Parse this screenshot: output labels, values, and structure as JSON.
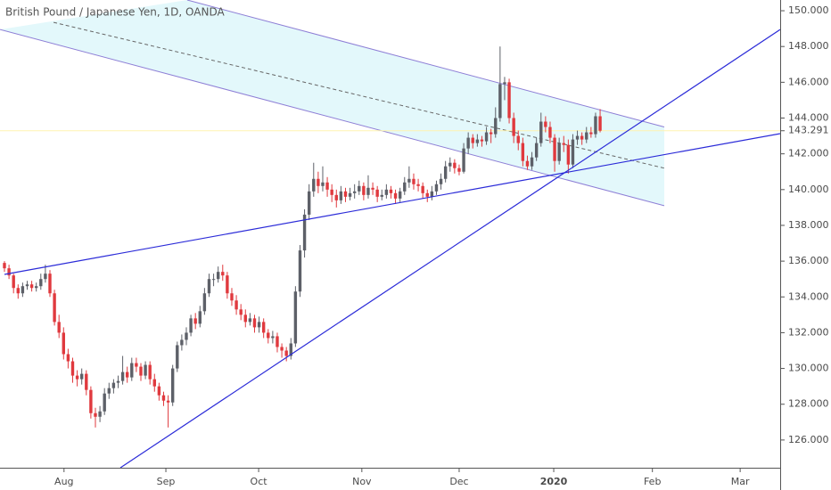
{
  "chart_data": {
    "type": "candlestick",
    "title": "British Pound / Japanese Yen, 1D, OANDA",
    "up_color": "#5d6068",
    "down_color": "#e0393e",
    "xlim": [
      -0.98,
      170.6
    ],
    "xticks": [
      {
        "value": 13.1,
        "label": "Aug"
      },
      {
        "value": 35.5,
        "label": "Sep"
      },
      {
        "value": 55.9,
        "label": "Oct"
      },
      {
        "value": 78.6,
        "label": "Nov"
      },
      {
        "value": 100,
        "label": "Dec"
      },
      {
        "value": 120.8,
        "label": "2020"
      },
      {
        "value": 142.5,
        "label": "Feb"
      },
      {
        "value": 161.8,
        "label": "Mar"
      }
    ],
    "ylim": [
      124.45,
      150.6
    ],
    "yticks": [
      {
        "value": 126,
        "label": "126.000"
      },
      {
        "value": 128,
        "label": "128.000"
      },
      {
        "value": 130,
        "label": "130.000"
      },
      {
        "value": 132,
        "label": "132.000"
      },
      {
        "value": 134,
        "label": "134.000"
      },
      {
        "value": 136,
        "label": "136.000"
      },
      {
        "value": 138,
        "label": "138.000"
      },
      {
        "value": 140,
        "label": "140.000"
      },
      {
        "value": 142,
        "label": "142.000"
      },
      {
        "value": 144,
        "label": "144.000"
      },
      {
        "value": 146,
        "label": "146.000"
      },
      {
        "value": 148,
        "label": "148.000"
      },
      {
        "value": 150,
        "label": "150.000"
      }
    ],
    "last_price": {
      "value": 143.291,
      "label": "143.291",
      "color": "#fff3b0"
    },
    "channel": {
      "color": "#8e7fd6",
      "fill": "#e3f8fb",
      "upper": [
        [
          40.2,
          150.6
        ],
        [
          145.1,
          143.5
        ]
      ],
      "middle": [
        [
          10.8,
          149.35
        ],
        [
          145.1,
          141.2
        ]
      ],
      "lower": [
        [
          -0.98,
          148.95
        ],
        [
          145.1,
          139.1
        ]
      ]
    },
    "trendlines": [
      {
        "color": "#2b2bd8",
        "points": [
          [
            0,
            135.26
          ],
          [
            170.6,
            143.13
          ]
        ]
      },
      {
        "color": "#2b2bd8",
        "points": [
          [
            25.5,
            124.45
          ],
          [
            170.6,
            148.95
          ]
        ]
      }
    ],
    "candles": [
      [
        135.9,
        136.0,
        135.4,
        135.6
      ],
      [
        135.6,
        135.8,
        135.0,
        135.2
      ],
      [
        135.2,
        135.3,
        134.2,
        134.5
      ],
      [
        134.5,
        134.7,
        133.9,
        134.2
      ],
      [
        134.2,
        134.8,
        134.0,
        134.6
      ],
      [
        134.6,
        134.9,
        134.4,
        134.7
      ],
      [
        134.7,
        134.9,
        134.3,
        134.5
      ],
      [
        134.5,
        134.8,
        134.3,
        134.6
      ],
      [
        134.6,
        135.3,
        134.4,
        135.0
      ],
      [
        135.0,
        135.8,
        134.8,
        135.3
      ],
      [
        135.3,
        135.5,
        134.0,
        134.2
      ],
      [
        134.2,
        134.4,
        132.4,
        132.6
      ],
      [
        132.6,
        133.0,
        131.7,
        132.0
      ],
      [
        132.0,
        132.3,
        130.5,
        130.8
      ],
      [
        130.8,
        131.1,
        130.0,
        130.4
      ],
      [
        130.4,
        130.6,
        129.2,
        129.6
      ],
      [
        129.6,
        129.9,
        129.0,
        129.4
      ],
      [
        129.4,
        130.0,
        129.1,
        129.7
      ],
      [
        129.7,
        129.9,
        128.5,
        128.8
      ],
      [
        128.8,
        129.0,
        127.2,
        127.5
      ],
      [
        127.5,
        127.8,
        126.7,
        127.3
      ],
      [
        127.3,
        127.9,
        127.0,
        127.6
      ],
      [
        127.6,
        128.9,
        127.4,
        128.6
      ],
      [
        128.6,
        129.2,
        128.3,
        128.9
      ],
      [
        128.9,
        129.4,
        128.6,
        129.2
      ],
      [
        129.2,
        129.6,
        128.9,
        129.3
      ],
      [
        129.3,
        130.7,
        129.1,
        129.8
      ],
      [
        129.8,
        130.1,
        129.2,
        129.5
      ],
      [
        129.5,
        130.6,
        129.3,
        130.3
      ],
      [
        130.3,
        130.6,
        129.8,
        130.1
      ],
      [
        130.1,
        130.3,
        129.3,
        129.6
      ],
      [
        129.6,
        130.4,
        129.4,
        130.2
      ],
      [
        130.2,
        130.4,
        129.1,
        129.4
      ],
      [
        129.4,
        129.7,
        128.7,
        129.0
      ],
      [
        129.0,
        129.2,
        128.2,
        128.5
      ],
      [
        128.5,
        128.7,
        127.9,
        128.2
      ],
      [
        128.2,
        128.5,
        126.7,
        128.1
      ],
      [
        128.1,
        130.2,
        127.9,
        130.0
      ],
      [
        130.0,
        131.5,
        129.8,
        131.3
      ],
      [
        131.3,
        131.9,
        131.0,
        131.6
      ],
      [
        131.6,
        132.3,
        131.3,
        132.0
      ],
      [
        132.0,
        133.0,
        131.8,
        132.8
      ],
      [
        132.8,
        133.1,
        132.2,
        132.5
      ],
      [
        132.5,
        133.5,
        132.3,
        133.2
      ],
      [
        133.2,
        134.5,
        133.0,
        134.2
      ],
      [
        134.2,
        135.3,
        134.0,
        135.0
      ],
      [
        135.0,
        135.3,
        134.6,
        135.0
      ],
      [
        135.0,
        135.7,
        134.8,
        135.4
      ],
      [
        135.4,
        135.8,
        134.9,
        135.2
      ],
      [
        135.2,
        135.4,
        133.9,
        134.2
      ],
      [
        134.2,
        134.5,
        133.5,
        133.8
      ],
      [
        133.8,
        134.1,
        133.0,
        133.3
      ],
      [
        133.3,
        133.6,
        132.7,
        133.0
      ],
      [
        133.0,
        133.3,
        132.3,
        132.6
      ],
      [
        132.6,
        133.1,
        132.4,
        132.8
      ],
      [
        132.8,
        133.0,
        132.0,
        132.3
      ],
      [
        132.3,
        132.9,
        132.0,
        132.6
      ],
      [
        132.6,
        132.8,
        131.7,
        132.0
      ],
      [
        132.0,
        132.2,
        131.4,
        131.7
      ],
      [
        131.7,
        132.1,
        131.4,
        131.8
      ],
      [
        131.8,
        132.0,
        130.9,
        131.2
      ],
      [
        131.2,
        131.4,
        130.6,
        131.0
      ],
      [
        131.0,
        131.2,
        130.4,
        130.7
      ],
      [
        130.7,
        131.7,
        130.5,
        131.4
      ],
      [
        131.4,
        134.6,
        131.2,
        134.3
      ],
      [
        134.3,
        136.9,
        134.0,
        136.6
      ],
      [
        136.6,
        138.9,
        136.2,
        138.6
      ],
      [
        138.6,
        140.3,
        138.3,
        139.9
      ],
      [
        139.9,
        141.5,
        139.6,
        140.6
      ],
      [
        140.6,
        141.0,
        139.8,
        140.2
      ],
      [
        140.2,
        141.3,
        139.9,
        140.4
      ],
      [
        140.4,
        140.7,
        139.6,
        140.0
      ],
      [
        140.0,
        140.3,
        139.3,
        139.7
      ],
      [
        139.7,
        140.0,
        139.0,
        139.4
      ],
      [
        139.4,
        140.2,
        139.2,
        139.9
      ],
      [
        139.9,
        140.1,
        139.3,
        139.6
      ],
      [
        139.6,
        140.1,
        139.4,
        139.8
      ],
      [
        139.8,
        140.3,
        139.5,
        139.9
      ],
      [
        139.9,
        140.5,
        139.7,
        140.2
      ],
      [
        140.2,
        140.4,
        139.4,
        139.7
      ],
      [
        139.7,
        140.8,
        139.5,
        140.1
      ],
      [
        140.1,
        140.4,
        139.7,
        140.0
      ],
      [
        140.0,
        140.2,
        139.3,
        139.6
      ],
      [
        139.6,
        140.0,
        139.4,
        139.7
      ],
      [
        139.7,
        140.3,
        139.5,
        140.0
      ],
      [
        140.0,
        140.2,
        139.5,
        139.8
      ],
      [
        139.8,
        140.0,
        139.2,
        139.5
      ],
      [
        139.5,
        140.1,
        139.3,
        139.9
      ],
      [
        139.9,
        140.7,
        139.7,
        140.4
      ],
      [
        140.4,
        141.3,
        140.1,
        140.6
      ],
      [
        140.6,
        140.9,
        140.0,
        140.3
      ],
      [
        140.3,
        140.6,
        139.9,
        140.2
      ],
      [
        140.2,
        140.4,
        139.5,
        139.8
      ],
      [
        139.8,
        140.0,
        139.3,
        139.6
      ],
      [
        139.6,
        140.2,
        139.4,
        139.9
      ],
      [
        139.9,
        140.5,
        139.7,
        140.3
      ],
      [
        140.3,
        140.9,
        140.0,
        140.6
      ],
      [
        140.6,
        141.6,
        140.4,
        141.3
      ],
      [
        141.3,
        141.8,
        141.0,
        141.5
      ],
      [
        141.5,
        141.7,
        140.9,
        141.2
      ],
      [
        141.2,
        141.4,
        140.8,
        141.0
      ],
      [
        141.0,
        142.6,
        140.9,
        142.3
      ],
      [
        142.3,
        143.2,
        142.0,
        142.9
      ],
      [
        142.9,
        143.1,
        142.3,
        142.6
      ],
      [
        142.6,
        143.1,
        142.4,
        142.8
      ],
      [
        142.8,
        143.0,
        142.4,
        142.7
      ],
      [
        142.7,
        143.5,
        142.5,
        143.2
      ],
      [
        143.2,
        143.4,
        142.6,
        143.1
      ],
      [
        143.1,
        144.6,
        142.9,
        144.0
      ],
      [
        144.0,
        148.0,
        143.8,
        145.9
      ],
      [
        145.9,
        146.3,
        145.0,
        146.0
      ],
      [
        146.0,
        146.2,
        143.7,
        144.0
      ],
      [
        144.0,
        144.3,
        142.6,
        143.0
      ],
      [
        143.0,
        143.3,
        142.2,
        142.6
      ],
      [
        142.6,
        142.9,
        141.3,
        141.6
      ],
      [
        141.6,
        141.9,
        141.1,
        141.3
      ],
      [
        141.3,
        142.1,
        141.1,
        141.8
      ],
      [
        141.8,
        142.9,
        141.6,
        142.6
      ],
      [
        142.6,
        144.3,
        142.4,
        143.8
      ],
      [
        143.8,
        144.1,
        143.2,
        143.5
      ],
      [
        143.5,
        143.8,
        142.6,
        142.9
      ],
      [
        142.9,
        143.1,
        141.0,
        141.6
      ],
      [
        141.6,
        142.9,
        141.4,
        142.6
      ],
      [
        142.6,
        143.0,
        142.1,
        142.5
      ],
      [
        142.5,
        142.8,
        140.9,
        141.4
      ],
      [
        141.4,
        143.1,
        141.2,
        142.8
      ],
      [
        142.8,
        143.3,
        142.5,
        143.0
      ],
      [
        143.0,
        143.2,
        142.5,
        142.8
      ],
      [
        142.8,
        143.5,
        142.6,
        143.2
      ],
      [
        143.2,
        143.5,
        142.9,
        143.1
      ],
      [
        143.1,
        144.3,
        142.9,
        144.1
      ],
      [
        144.1,
        144.5,
        143.2,
        143.291
      ]
    ]
  }
}
